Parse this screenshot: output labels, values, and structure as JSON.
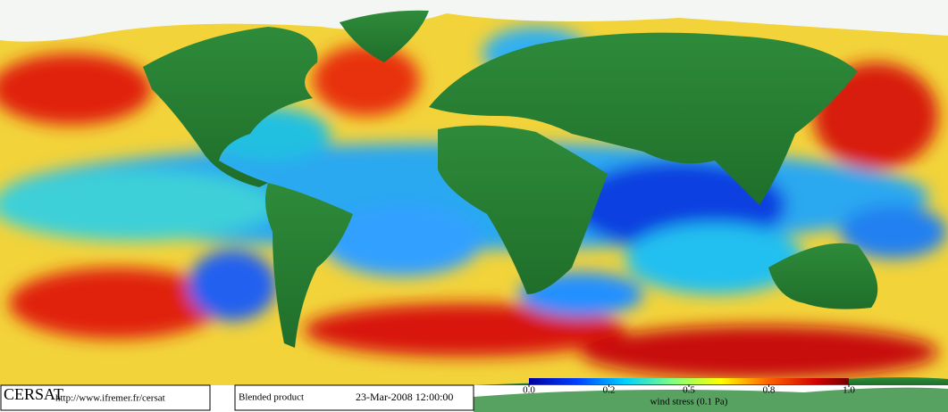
{
  "footer": {
    "logo": "CERSAT",
    "url": "http://www.ifremer.fr/cersat",
    "product": "Blended product",
    "date": "23-Mar-2008 12:00:00"
  },
  "legend": {
    "label": "wind stress (0.1 Pa)",
    "ticks": [
      {
        "value": 0,
        "label": "0.0"
      },
      0.2,
      0.5,
      0.8,
      {
        "value": 1,
        "label": "1.0"
      }
    ]
  }
}
